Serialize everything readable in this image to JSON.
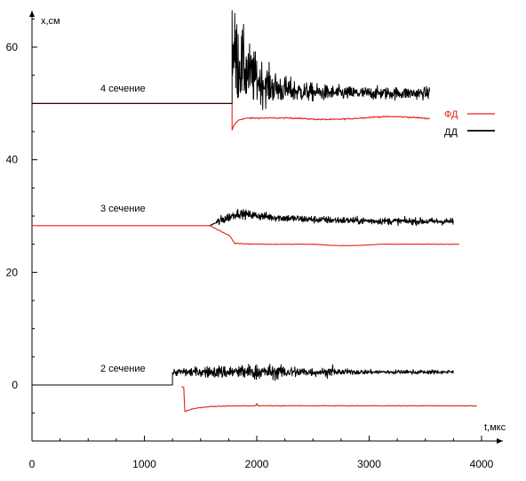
{
  "chart_data": {
    "type": "line",
    "xlabel": "t,мкс",
    "ylabel": "x,см",
    "xlim": [
      0,
      4000
    ],
    "ylim": [
      -10,
      66
    ],
    "x_ticks": [
      0,
      1000,
      2000,
      3000,
      4000
    ],
    "y_ticks": [
      0,
      20,
      40,
      60
    ],
    "grid": false,
    "legend_position": "right",
    "legend": [
      {
        "label": "ФД",
        "color": "#e8201a"
      },
      {
        "label": "ДД",
        "color": "#000000"
      }
    ],
    "annotations": [
      {
        "text": "4 сечение",
        "x": 600,
        "y": 52.5
      },
      {
        "text": "3 сечение",
        "x": 600,
        "y": 31
      },
      {
        "text": "2 сечение",
        "x": 600,
        "y": 2.5
      }
    ],
    "colors": {
      "fd": "#e8201a",
      "dd": "#000000"
    },
    "section_4": {
      "dd": {
        "pre": [
          [
            0,
            50.0
          ],
          [
            1780,
            50.0
          ]
        ],
        "decay": {
          "t0": 1780,
          "t_end": 3540,
          "peak": 65.5,
          "settle": 51.8
        }
      },
      "fd": {
        "pre": [
          [
            0,
            50.0
          ],
          [
            1780,
            50.0
          ]
        ],
        "dip": {
          "t0": 1780,
          "t_end": 3540,
          "min": 45.2,
          "settle": 47.4
        }
      }
    },
    "section_3": {
      "fd": {
        "pre": [
          [
            0,
            28.3
          ],
          [
            1580,
            28.3
          ]
        ],
        "drop": {
          "t0": 1580,
          "t_end": 3800,
          "min": 25.0,
          "settle": 25.0
        }
      },
      "dd": {
        "start": 1580,
        "t_end": 3750,
        "level": 29.0,
        "peak": 31.5
      }
    },
    "section_2": {
      "dd": {
        "pre": [
          [
            0,
            0.0
          ],
          [
            1250,
            0.0
          ]
        ],
        "noise": {
          "t0": 1250,
          "t_end": 3750,
          "level": 2.3,
          "peak": 6.5
        }
      },
      "fd": {
        "start": 1330,
        "t_end": 3960,
        "min": -4.7,
        "settle": -3.7
      }
    }
  }
}
